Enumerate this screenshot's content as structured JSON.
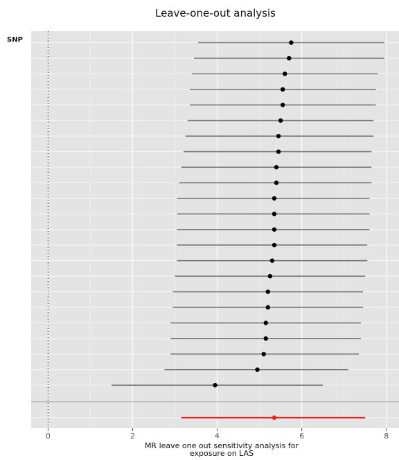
{
  "chart_data": {
    "type": "forest",
    "title": "Leave-one-out analysis",
    "ylabel": "SNP",
    "xlabel_lines": [
      "MR leave one out sensitivity analysis for",
      "exposure on LAS"
    ],
    "xlim": [
      -0.4,
      8.3
    ],
    "x_ticks": [
      0,
      2,
      4,
      6,
      8
    ],
    "reference_line": 0,
    "grid": true,
    "colors": {
      "panel": "#e4e4e4",
      "point": "#000000",
      "interval": "#777777",
      "overall": "#e8211d"
    },
    "rows": [
      {
        "est": 5.75,
        "lo": 3.55,
        "hi": 7.95
      },
      {
        "est": 5.7,
        "lo": 3.45,
        "hi": 7.95
      },
      {
        "est": 5.6,
        "lo": 3.4,
        "hi": 7.8
      },
      {
        "est": 5.55,
        "lo": 3.35,
        "hi": 7.75
      },
      {
        "est": 5.55,
        "lo": 3.35,
        "hi": 7.75
      },
      {
        "est": 5.5,
        "lo": 3.3,
        "hi": 7.7
      },
      {
        "est": 5.45,
        "lo": 3.25,
        "hi": 7.7
      },
      {
        "est": 5.45,
        "lo": 3.2,
        "hi": 7.65
      },
      {
        "est": 5.4,
        "lo": 3.15,
        "hi": 7.65
      },
      {
        "est": 5.4,
        "lo": 3.1,
        "hi": 7.65
      },
      {
        "est": 5.35,
        "lo": 3.05,
        "hi": 7.6
      },
      {
        "est": 5.35,
        "lo": 3.05,
        "hi": 7.6
      },
      {
        "est": 5.35,
        "lo": 3.05,
        "hi": 7.6
      },
      {
        "est": 5.35,
        "lo": 3.05,
        "hi": 7.55
      },
      {
        "est": 5.3,
        "lo": 3.05,
        "hi": 7.55
      },
      {
        "est": 5.25,
        "lo": 3.0,
        "hi": 7.5
      },
      {
        "est": 5.2,
        "lo": 2.95,
        "hi": 7.45
      },
      {
        "est": 5.2,
        "lo": 2.95,
        "hi": 7.45
      },
      {
        "est": 5.15,
        "lo": 2.9,
        "hi": 7.4
      },
      {
        "est": 5.15,
        "lo": 2.9,
        "hi": 7.4
      },
      {
        "est": 5.1,
        "lo": 2.9,
        "hi": 7.35
      },
      {
        "est": 4.95,
        "lo": 2.75,
        "hi": 7.1
      },
      {
        "est": 3.95,
        "lo": 1.5,
        "hi": 6.5
      }
    ],
    "overall": {
      "est": 5.35,
      "lo": 3.15,
      "hi": 7.5
    }
  }
}
